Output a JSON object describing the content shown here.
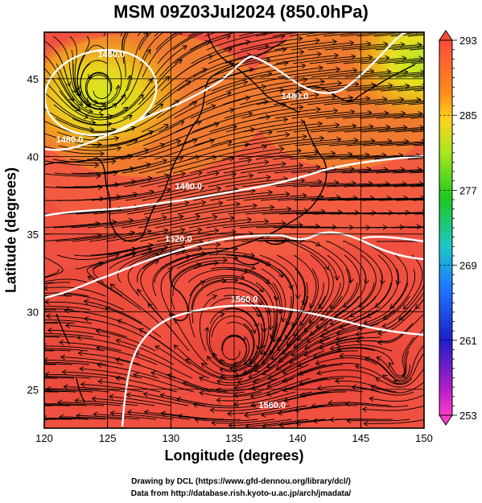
{
  "title": "MSM 09Z03Jul2024 (850.0hPa)",
  "map": {
    "lon_range": [
      120,
      150
    ],
    "lat_range": [
      22.5,
      48
    ],
    "x_ticks": [
      120,
      125,
      130,
      135,
      140,
      145,
      150
    ],
    "y_ticks": [
      25,
      30,
      35,
      40,
      45
    ],
    "xlabel": "Longitude (degrees)",
    "ylabel": "Latitude  (degrees)",
    "field": "temperature (K), shaded",
    "streamlines": "wind",
    "contours": [
      {
        "label": "1480.0",
        "lon": 125.3,
        "lat": 46.4
      },
      {
        "label": "1480.0",
        "lon": 139.8,
        "lat": 43.7
      },
      {
        "label": "1480.0",
        "lon": 122.0,
        "lat": 40.9
      },
      {
        "label": "1480.0",
        "lon": 131.4,
        "lat": 37.9
      },
      {
        "label": "1520.0",
        "lon": 130.6,
        "lat": 34.5
      },
      {
        "label": "1560.0",
        "lon": 135.8,
        "lat": 30.6
      },
      {
        "label": "1560.0",
        "lon": 138.0,
        "lat": 23.8
      }
    ]
  },
  "colorbar": {
    "min": 253,
    "max": 293,
    "labels": [
      293,
      285,
      277,
      269,
      261,
      253
    ],
    "colors_top_to_bottom": [
      "#ff4040",
      "#ff8c1a",
      "#ffd21e",
      "#a8e61e",
      "#1ec81e",
      "#1ec8c8",
      "#1e78ff",
      "#1e1ec8",
      "#b41ec8",
      "#ff3cc8"
    ]
  },
  "credits": {
    "line1": "Drawing by DCL (https://www.gfd-dennou.org/library/dcl/)",
    "line2": "Data from http://database.rish.kyoto-u.ac.jp/arch/jmadata/"
  }
}
